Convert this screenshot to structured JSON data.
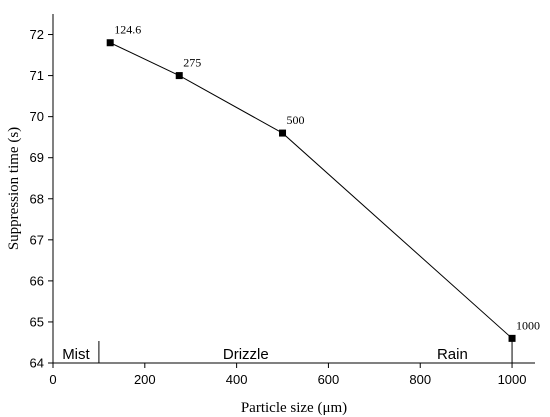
{
  "chart_data": {
    "type": "line",
    "xlabel": "Particle size (μm)",
    "ylabel": "Suppression time (s)",
    "xlim": [
      0,
      1050
    ],
    "ylim": [
      64,
      72.5
    ],
    "x_ticks": [
      0,
      200,
      400,
      600,
      800,
      1000
    ],
    "y_ticks": [
      64,
      65,
      66,
      67,
      68,
      69,
      70,
      71,
      72
    ],
    "grid": false,
    "series": [
      {
        "marker": "square",
        "color": "#000000",
        "points": [
          {
            "x": 124.6,
            "y": 71.8,
            "label": "124.6"
          },
          {
            "x": 275,
            "y": 71.0,
            "label": "275"
          },
          {
            "x": 500,
            "y": 69.6,
            "label": "500"
          },
          {
            "x": 1000,
            "y": 64.6,
            "label": "1000"
          }
        ]
      }
    ],
    "regions": [
      {
        "label": "Mist",
        "x_center": 50
      },
      {
        "label": "Drizzle",
        "x_center": 420
      },
      {
        "label": "Rain",
        "x_center": 870
      }
    ],
    "region_dividers": [
      100,
      1000
    ]
  }
}
